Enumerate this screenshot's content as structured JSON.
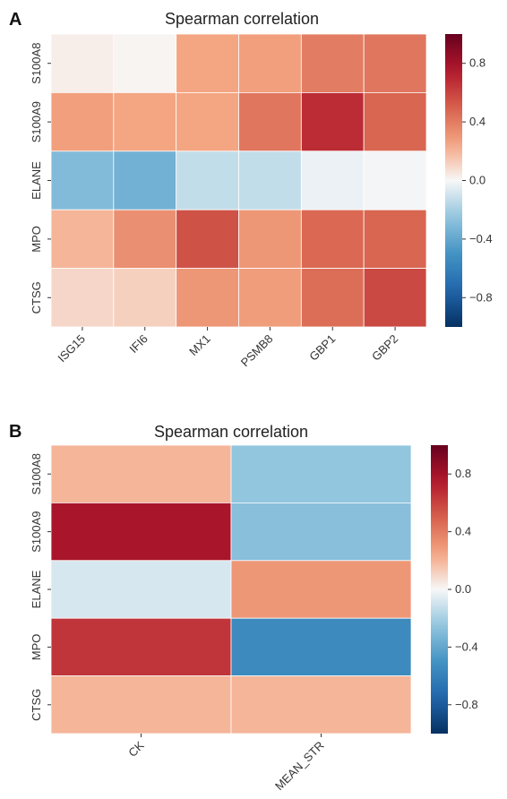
{
  "chart_data": [
    {
      "type": "heatmap",
      "panel": "A",
      "title": "Spearman correlation",
      "rows": [
        "S100A8",
        "S100A9",
        "ELANE",
        "MPO",
        "CTSG"
      ],
      "cols": [
        "ISG15",
        "IFI6",
        "MX1",
        "PSMB8",
        "GBP1",
        "GBP2"
      ],
      "values": [
        [
          0.03,
          0.01,
          0.25,
          0.27,
          0.4,
          0.42
        ],
        [
          0.27,
          0.25,
          0.25,
          0.42,
          0.68,
          0.48
        ],
        [
          -0.3,
          -0.35,
          -0.13,
          -0.13,
          -0.03,
          -0.01
        ],
        [
          0.2,
          0.33,
          0.55,
          0.3,
          0.47,
          0.48
        ],
        [
          0.1,
          0.12,
          0.3,
          0.28,
          0.45,
          0.58
        ]
      ],
      "colorbar": {
        "range": [
          -1,
          1
        ],
        "ticks": [
          "0.8",
          "0.4",
          "0.0",
          "−0.4",
          "−0.8"
        ],
        "tick_values": [
          0.8,
          0.4,
          0.0,
          -0.4,
          -0.8
        ],
        "cmap": "RdBu_r"
      }
    },
    {
      "type": "heatmap",
      "panel": "B",
      "title": "Spearman correlation",
      "rows": [
        "S100A8",
        "S100A9",
        "ELANE",
        "MPO",
        "CTSG"
      ],
      "cols": [
        "CK",
        "MEAN_STR"
      ],
      "values": [
        [
          0.2,
          -0.25
        ],
        [
          0.78,
          -0.28
        ],
        [
          -0.08,
          0.3
        ],
        [
          0.65,
          -0.55
        ],
        [
          0.2,
          0.2
        ]
      ],
      "colorbar": {
        "range": [
          -1,
          1
        ],
        "ticks": [
          "0.8",
          "0.4",
          "0.0",
          "−0.4",
          "−0.8"
        ],
        "tick_values": [
          0.8,
          0.4,
          0.0,
          -0.4,
          -0.8
        ],
        "cmap": "RdBu_r"
      }
    }
  ]
}
